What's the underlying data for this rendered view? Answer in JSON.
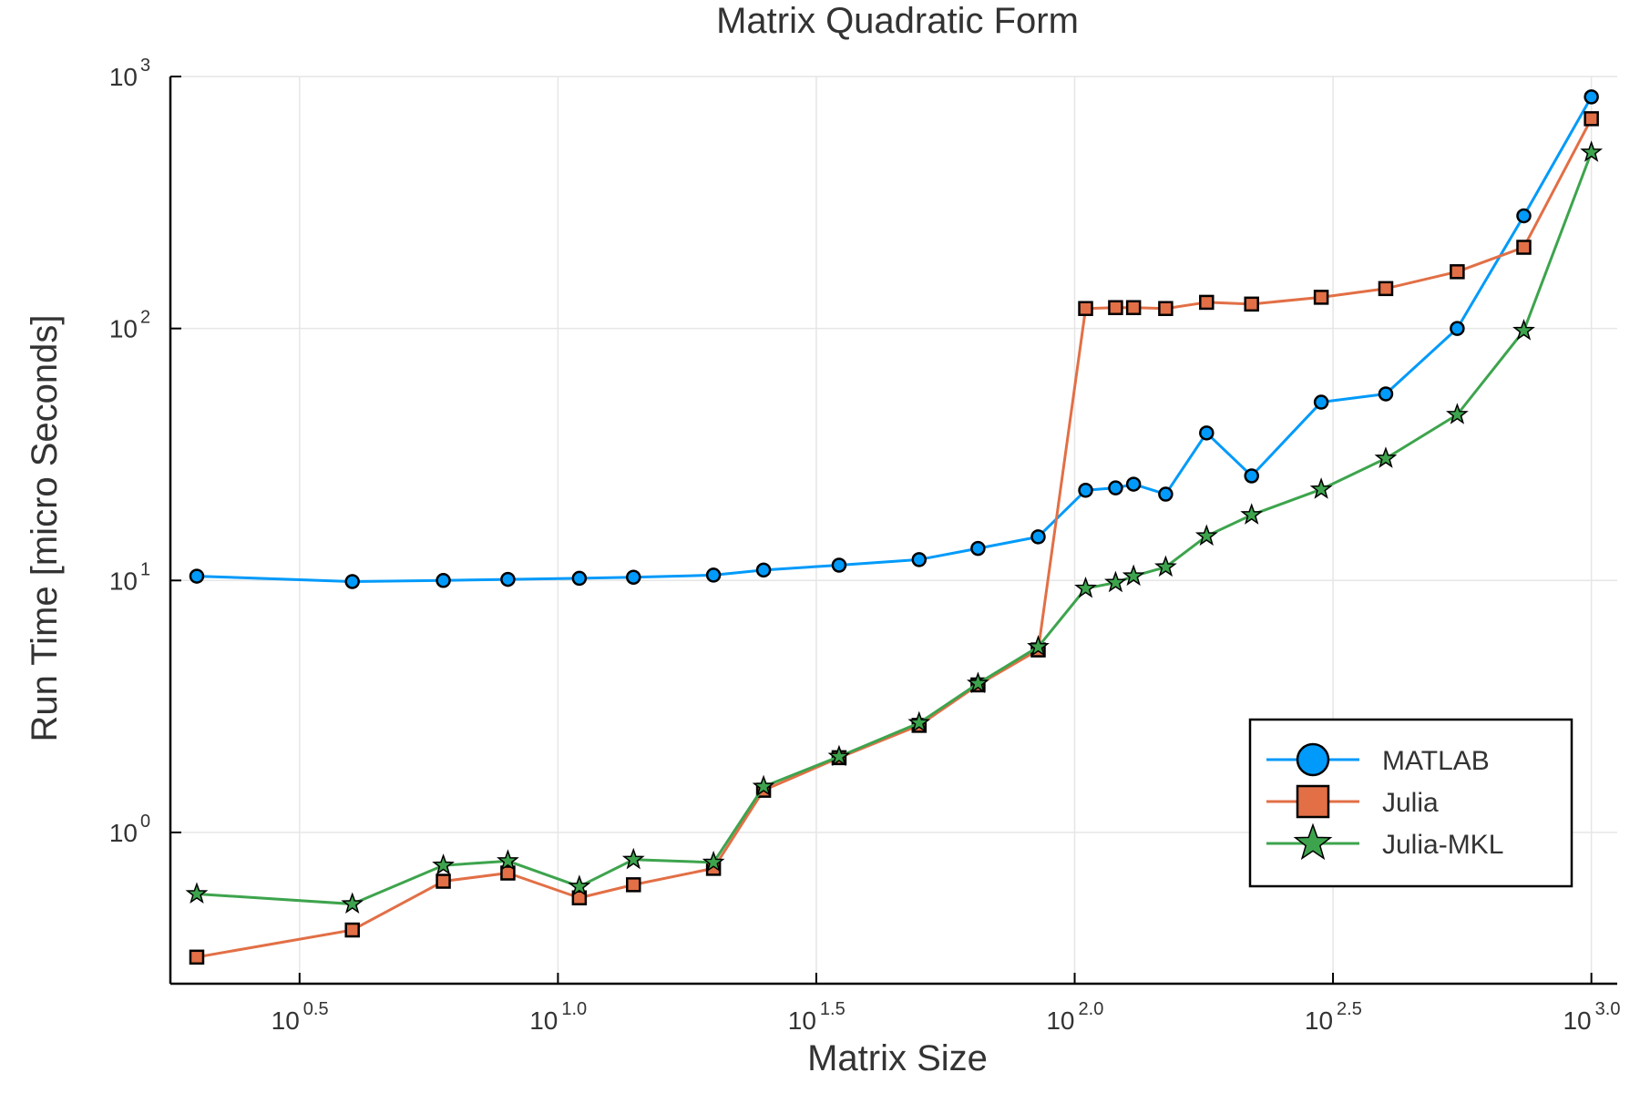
{
  "chart_data": {
    "type": "line",
    "title": "Matrix Quadratic Form",
    "xlabel": "Matrix Size",
    "ylabel": "Run Time  [micro Seconds]",
    "x_scale": "log10",
    "y_scale": "log10",
    "xlim": [
      1.778,
      1122
    ],
    "ylim": [
      0.251,
      1000
    ],
    "x_ticks": [
      {
        "value": 3.162,
        "base": "10",
        "exp": "0.5"
      },
      {
        "value": 10,
        "base": "10",
        "exp": "1.0"
      },
      {
        "value": 31.62,
        "base": "10",
        "exp": "1.5"
      },
      {
        "value": 100,
        "base": "10",
        "exp": "2.0"
      },
      {
        "value": 316.2,
        "base": "10",
        "exp": "2.5"
      },
      {
        "value": 1000,
        "base": "10",
        "exp": "3.0"
      }
    ],
    "y_ticks": [
      {
        "value": 1,
        "base": "10",
        "exp": "0"
      },
      {
        "value": 10,
        "base": "10",
        "exp": "1"
      },
      {
        "value": 100,
        "base": "10",
        "exp": "2"
      },
      {
        "value": 1000,
        "base": "10",
        "exp": "3"
      }
    ],
    "grid": true,
    "legend_position": "bottom-right",
    "x": [
      2,
      4,
      6,
      8,
      11,
      14,
      20,
      25,
      35,
      50,
      65,
      85,
      105,
      120,
      130,
      150,
      180,
      220,
      300,
      400,
      550,
      740,
      1000
    ],
    "series": [
      {
        "name": "MATLAB",
        "color": "#009AFA",
        "marker": "circle",
        "values": [
          10.4,
          9.9,
          10.0,
          10.1,
          10.2,
          10.3,
          10.5,
          11.0,
          11.5,
          12.1,
          13.4,
          14.9,
          22.8,
          23.3,
          24.1,
          22.0,
          38.5,
          26.0,
          51.0,
          55.0,
          100.0,
          280.0,
          830.0
        ]
      },
      {
        "name": "Julia",
        "color": "#E26F46",
        "marker": "square",
        "values": [
          0.32,
          0.41,
          0.64,
          0.69,
          0.55,
          0.62,
          0.72,
          1.47,
          1.98,
          2.66,
          3.85,
          5.3,
          120,
          121,
          121,
          120,
          127,
          125,
          133,
          144,
          168,
          210,
          680
        ]
      },
      {
        "name": "Julia-MKL",
        "color": "#3DA44D",
        "marker": "star",
        "values": [
          0.57,
          0.52,
          0.74,
          0.77,
          0.61,
          0.78,
          0.76,
          1.52,
          2.0,
          2.72,
          3.9,
          5.45,
          9.3,
          9.8,
          10.4,
          11.3,
          15.0,
          18.2,
          23.0,
          30.5,
          45.5,
          98.0,
          500
        ]
      }
    ]
  }
}
